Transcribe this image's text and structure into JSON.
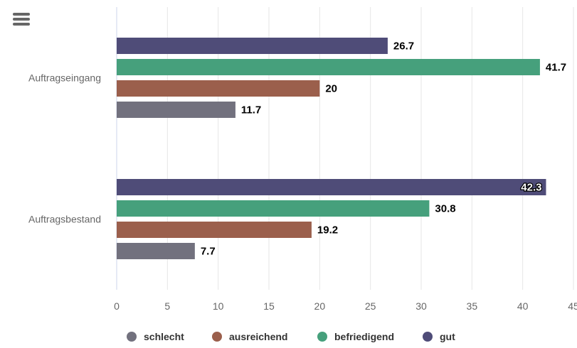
{
  "chart_data": {
    "type": "bar",
    "orientation": "horizontal",
    "categories": [
      "Auftragseingang",
      "Auftragsbestand"
    ],
    "series": [
      {
        "name": "gut",
        "color": "#4f4c78",
        "values": [
          26.7,
          42.3
        ]
      },
      {
        "name": "befriedigend",
        "color": "#46a07c",
        "values": [
          41.7,
          30.8
        ]
      },
      {
        "name": "ausreichend",
        "color": "#9b5f4c",
        "values": [
          20,
          19.2
        ]
      },
      {
        "name": "schlecht",
        "color": "#72717e",
        "values": [
          11.7,
          7.7
        ]
      }
    ],
    "legend_order": [
      "schlecht",
      "ausreichend",
      "befriedigend",
      "gut"
    ],
    "xlim": [
      0,
      45
    ],
    "xticks": [
      0,
      5,
      10,
      15,
      20,
      25,
      30,
      35,
      40,
      45
    ],
    "grid": true,
    "legend_position": "bottom"
  },
  "menu": {
    "icon": "hamburger-menu-icon"
  }
}
